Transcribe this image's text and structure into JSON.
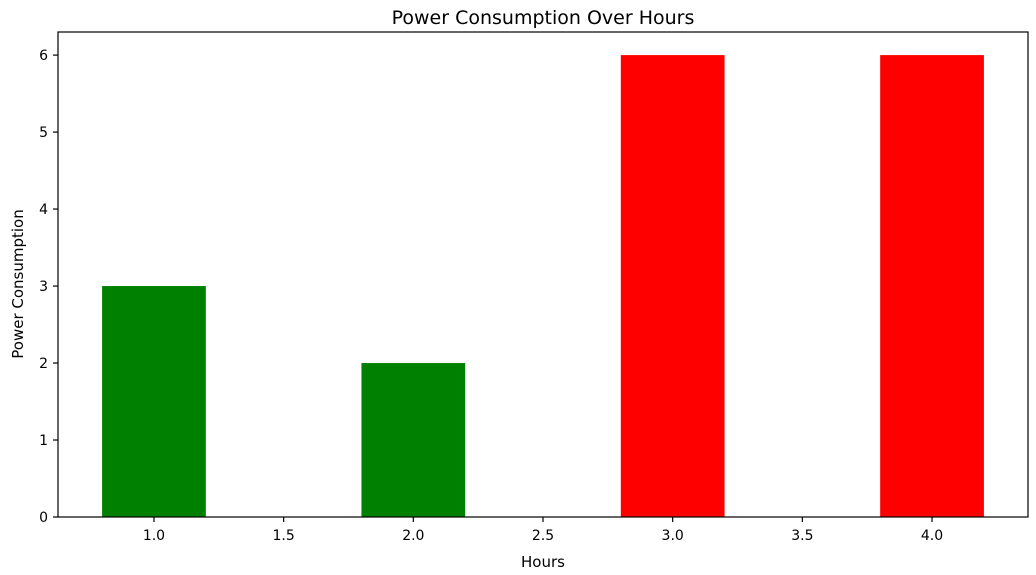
{
  "chart_data": {
    "type": "bar",
    "title": "Power Consumption Over Hours",
    "xlabel": "Hours",
    "ylabel": "Power Consumption",
    "x": [
      1.0,
      2.0,
      3.0,
      4.0
    ],
    "values": [
      3,
      2,
      6,
      6
    ],
    "bar_colors": [
      "#008000",
      "#008000",
      "#ff0000",
      "#ff0000"
    ],
    "bar_width": 0.4,
    "xlim": [
      0.63,
      4.37
    ],
    "ylim": [
      0,
      6.3
    ],
    "xticks": [
      1.0,
      1.5,
      2.0,
      2.5,
      3.0,
      3.5,
      4.0
    ],
    "xtick_labels": [
      "1.0",
      "1.5",
      "2.0",
      "2.5",
      "3.0",
      "3.5",
      "4.0"
    ],
    "yticks": [
      0,
      1,
      2,
      3,
      4,
      5,
      6
    ],
    "ytick_labels": [
      "0",
      "1",
      "2",
      "3",
      "4",
      "5",
      "6"
    ],
    "grid": false,
    "legend": "none"
  }
}
